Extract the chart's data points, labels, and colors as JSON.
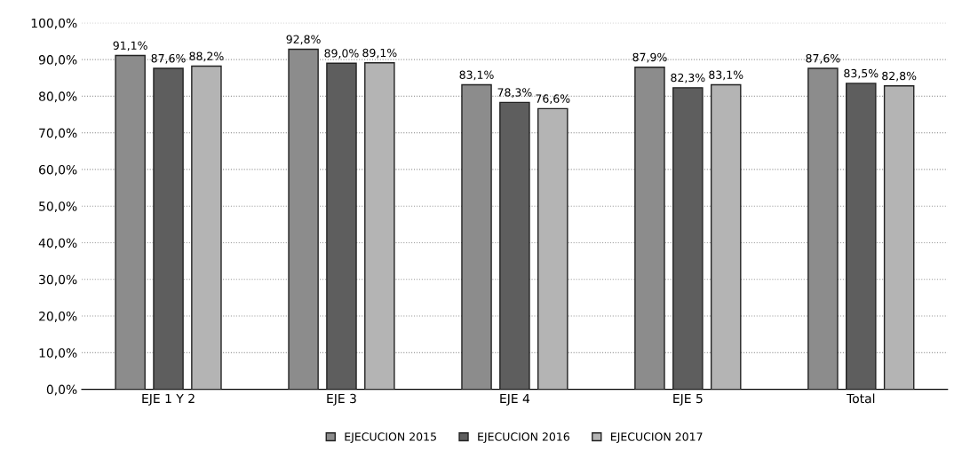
{
  "chart_data": {
    "type": "bar",
    "categories": [
      "EJE 1 Y 2",
      "EJE 3",
      "EJE 4",
      "EJE 5",
      "Total"
    ],
    "series": [
      {
        "name": "EJECUCION 2015",
        "color": "#8c8c8c",
        "values": [
          91.1,
          92.8,
          83.1,
          87.9,
          87.6
        ],
        "value_labels": [
          "91,1%",
          "92,8%",
          "83,1%",
          "87,9%",
          "87,6%"
        ]
      },
      {
        "name": "EJECUCION 2016",
        "color": "#5e5e5e",
        "values": [
          87.6,
          89.0,
          78.3,
          82.3,
          83.5
        ],
        "value_labels": [
          "87,6%",
          "89,0%",
          "78,3%",
          "82,3%",
          "83,5%"
        ]
      },
      {
        "name": "EJECUCION 2017",
        "color": "#b4b4b4",
        "values": [
          88.2,
          89.1,
          76.6,
          83.1,
          82.8
        ],
        "value_labels": [
          "88,2%",
          "89,1%",
          "76,6%",
          "83,1%",
          "82,8%"
        ]
      }
    ],
    "ylim": [
      0,
      100
    ],
    "yticks": [
      {
        "value": 0,
        "label": "0,0%"
      },
      {
        "value": 10,
        "label": "10,0%"
      },
      {
        "value": 20,
        "label": "20,0%"
      },
      {
        "value": 30,
        "label": "30,0%"
      },
      {
        "value": 40,
        "label": "40,0%"
      },
      {
        "value": 50,
        "label": "50,0%"
      },
      {
        "value": 60,
        "label": "60,0%"
      },
      {
        "value": 70,
        "label": "70,0%"
      },
      {
        "value": 80,
        "label": "80,0%"
      },
      {
        "value": 90,
        "label": "90,0%"
      },
      {
        "value": 100,
        "label": "100,0%"
      }
    ],
    "grid": "y",
    "legend": "bottom"
  }
}
